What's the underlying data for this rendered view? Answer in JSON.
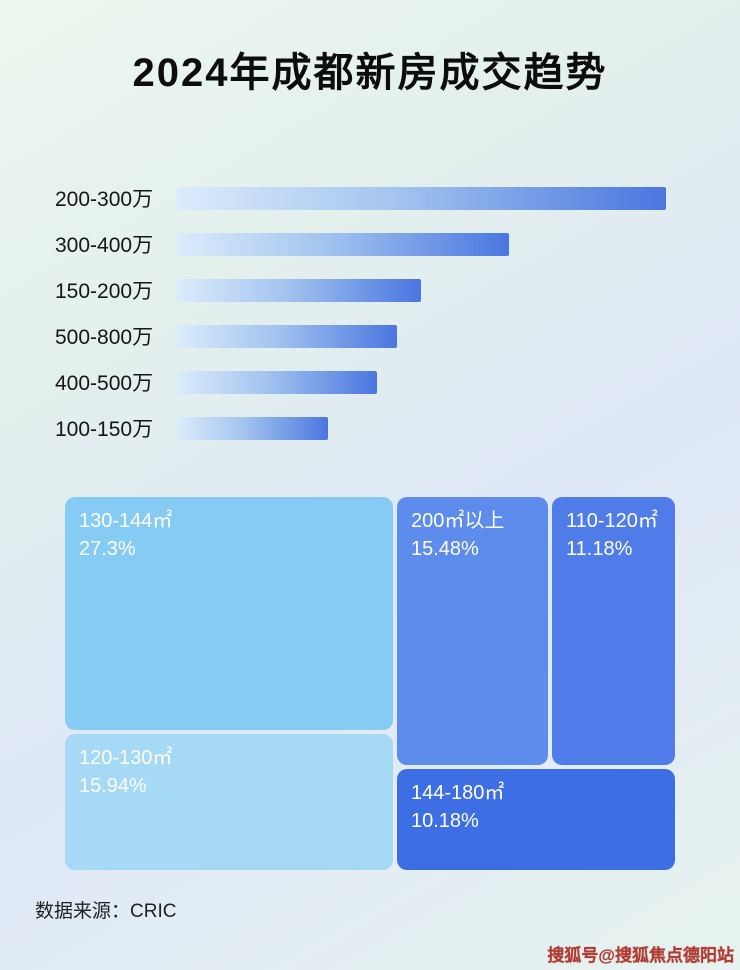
{
  "title": "2024年成都新房成交趋势",
  "footer": {
    "source_label": "数据来源：CRIC"
  },
  "watermark": {
    "text": "搜狐号@搜狐焦点德阳站",
    "color": "#b5382e"
  },
  "colors": {
    "bar_gradient_start": "#dcecfb",
    "bar_gradient_end": "#4a76e0",
    "treemap_130_144": "#85cbf3",
    "treemap_120_130": "#a5d9f6",
    "treemap_200_plus": "#5e8cec",
    "treemap_110_120": "#4f7ce9",
    "treemap_144_180": "#3e6ee3",
    "background": "#e6f1f1"
  },
  "chart_data": [
    {
      "type": "bar",
      "orientation": "horizontal",
      "title": "2024年成都新房成交趋势",
      "categories": [
        "200-300万",
        "300-400万",
        "150-200万",
        "500-800万",
        "400-500万",
        "100-150万"
      ],
      "values": [
        100,
        68,
        50,
        45,
        41,
        31
      ],
      "value_note": "relative bar length, % of longest bar (no numeric axis shown in image)",
      "xlabel": "",
      "ylabel": "",
      "grid": false,
      "legend": false
    },
    {
      "type": "treemap",
      "title": "",
      "items": [
        {
          "label": "130-144㎡",
          "value": 27.3,
          "display": "27.3%"
        },
        {
          "label": "200㎡以上",
          "value": 15.48,
          "display": "15.48%"
        },
        {
          "label": "110-120㎡",
          "value": 11.18,
          "display": "11.18%"
        },
        {
          "label": "120-130㎡",
          "value": 15.94,
          "display": "15.94%"
        },
        {
          "label": "144-180㎡",
          "value": 10.18,
          "display": "10.18%"
        }
      ]
    }
  ]
}
